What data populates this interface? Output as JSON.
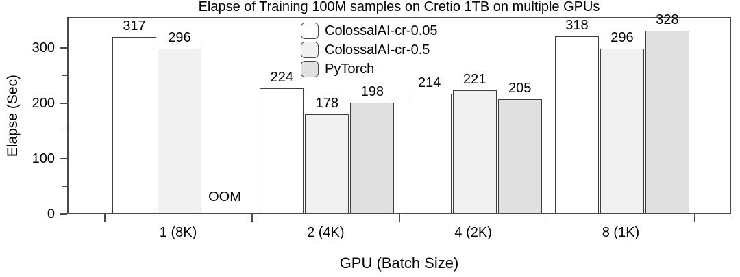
{
  "chart_data": {
    "type": "bar",
    "title": "Elapse of Training 100M samples on Cretio 1TB on multiple GPUs",
    "xlabel": "GPU (Batch Size)",
    "ylabel": "Elapse (Sec)",
    "categories": [
      "1 (8K)",
      "2 (4K)",
      "4 (2K)",
      "8 (1K)"
    ],
    "series": [
      {
        "name": "ColossalAI-cr-0.05",
        "color": "#ffffff",
        "values": [
          317,
          224,
          214,
          318
        ]
      },
      {
        "name": "ColossalAI-cr-0.5",
        "color": "#f1f1f1",
        "values": [
          296,
          178,
          221,
          296
        ]
      },
      {
        "name": "PyTorch",
        "color": "#e0e0e0",
        "values": [
          null,
          198,
          205,
          328
        ]
      }
    ],
    "missing_value_label": "OOM",
    "ylim": [
      0,
      355
    ],
    "yticks": [
      0,
      100,
      200,
      300
    ],
    "yticks_minor": [
      50,
      150,
      250
    ],
    "legend_position": "upper center",
    "grid": false,
    "bar_edge_color": "#3d3d3d",
    "axis_color": "#4a4a4a"
  }
}
